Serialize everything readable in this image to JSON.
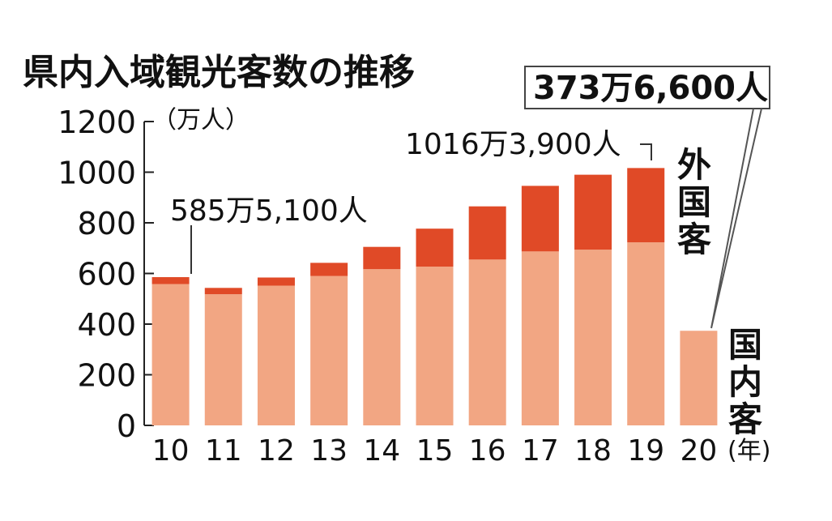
{
  "chart_data": {
    "type": "bar",
    "stacked": true,
    "title": "県内入域観光客数の推移",
    "y_unit_label": "（万人）",
    "x_unit_label": "(年)",
    "categories": [
      "10",
      "11",
      "12",
      "13",
      "14",
      "15",
      "16",
      "17",
      "18",
      "19",
      "20"
    ],
    "yticks": [
      "0",
      "200",
      "400",
      "600",
      "800",
      "1000",
      "1200"
    ],
    "ylim": [
      0,
      1200
    ],
    "series": [
      {
        "name": "国内客",
        "color": "#f2a683",
        "values": [
          558,
          518,
          552,
          590,
          617,
          627,
          655,
          687,
          694,
          723,
          373.66
        ]
      },
      {
        "name": "外国客",
        "color": "#e04a27",
        "values": [
          27.5,
          25,
          32,
          52,
          88,
          150,
          210,
          259,
          296,
          293.39,
          0
        ]
      }
    ],
    "annotations": [
      {
        "text": "585万5,100人",
        "category": "10",
        "value": 585.51,
        "boxed": false
      },
      {
        "text": "1016万3,900人",
        "category": "19",
        "value": 1016.39,
        "boxed": false
      },
      {
        "text": "373万6,600人",
        "category": "20",
        "value": 373.66,
        "boxed": true
      }
    ]
  }
}
